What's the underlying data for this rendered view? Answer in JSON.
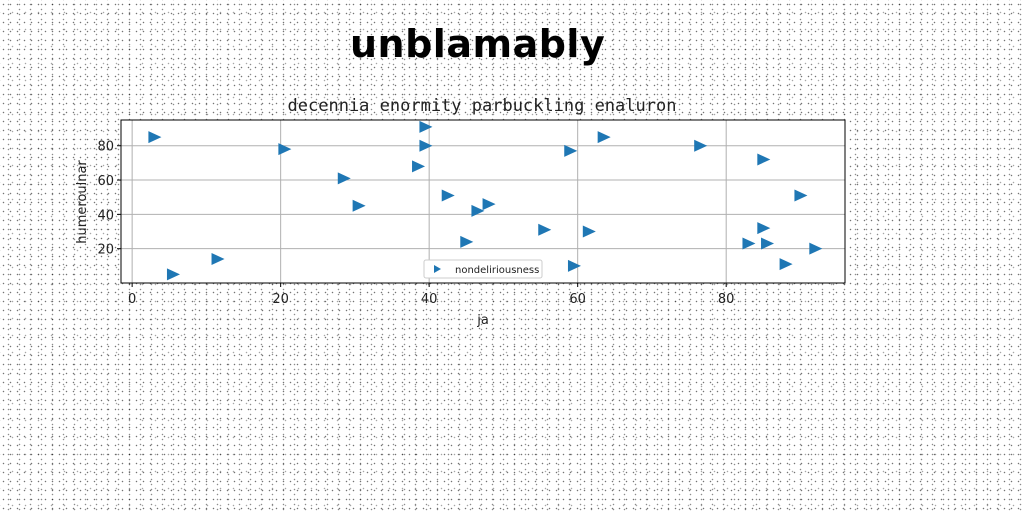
{
  "headline": "unblamably",
  "chart_data": {
    "type": "scatter",
    "title": "decennia enormity parbuckling enaluron",
    "xlabel": "ja",
    "ylabel": "humeroulnar",
    "xlim": [
      -1.5,
      96
    ],
    "ylim": [
      0,
      95
    ],
    "xticks": [
      0,
      20,
      40,
      60,
      80
    ],
    "yticks": [
      20,
      40,
      60,
      80
    ],
    "grid": true,
    "legend_position": "lower center",
    "marker": "triangle-right",
    "color": "#1f77b4",
    "series": [
      {
        "name": "nondeliriousness",
        "points": [
          [
            3,
            85
          ],
          [
            5.5,
            5
          ],
          [
            11.5,
            14
          ],
          [
            20.5,
            78
          ],
          [
            28.5,
            61
          ],
          [
            30.5,
            45
          ],
          [
            38.5,
            68
          ],
          [
            39.5,
            91
          ],
          [
            39.5,
            80
          ],
          [
            42.5,
            51
          ],
          [
            45,
            24
          ],
          [
            46.5,
            42
          ],
          [
            48,
            46
          ],
          [
            55.5,
            31
          ],
          [
            59,
            77
          ],
          [
            59.5,
            10
          ],
          [
            61.5,
            30
          ],
          [
            63.5,
            85
          ],
          [
            76.5,
            80
          ],
          [
            83,
            23
          ],
          [
            85,
            32
          ],
          [
            85,
            72
          ],
          [
            85.5,
            23
          ],
          [
            88,
            11
          ],
          [
            90,
            51
          ],
          [
            92,
            20
          ]
        ]
      }
    ]
  }
}
